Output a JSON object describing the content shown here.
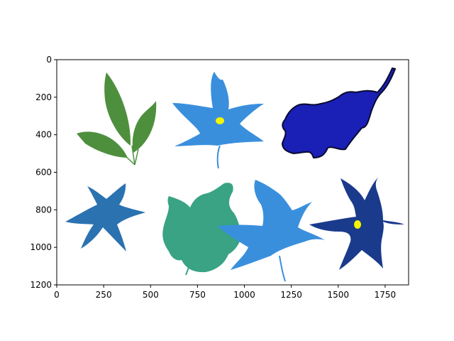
{
  "chart_data": {
    "type": "image",
    "title": "",
    "xlabel": "",
    "ylabel": "",
    "xlim": [
      0,
      1875
    ],
    "ylim": [
      1200,
      0
    ],
    "y_inverted": true,
    "grid": false,
    "legend": "none",
    "x_ticks": [
      0,
      250,
      500,
      750,
      1000,
      1250,
      1500,
      1750
    ],
    "y_ticks": [
      0,
      200,
      400,
      600,
      800,
      1000,
      1200
    ],
    "leaves": [
      {
        "name": "green-compound-leaf",
        "color": "#4e8f3e"
      },
      {
        "name": "light-blue-maple-leaf-top",
        "color": "#3a8fdd",
        "marker_color": "#f5f500"
      },
      {
        "name": "dark-blue-oak-leaf",
        "color": "#1a1fb5",
        "edge_color": "#0a0a30"
      },
      {
        "name": "steel-blue-star-leaf",
        "color": "#2b72b0"
      },
      {
        "name": "teal-maple-leaf",
        "color": "#39a383"
      },
      {
        "name": "light-blue-maple-leaf-bottom",
        "color": "#3a8fdd"
      },
      {
        "name": "navy-star-leaf",
        "color": "#1a3a8c",
        "marker_color": "#f5f500"
      }
    ]
  }
}
